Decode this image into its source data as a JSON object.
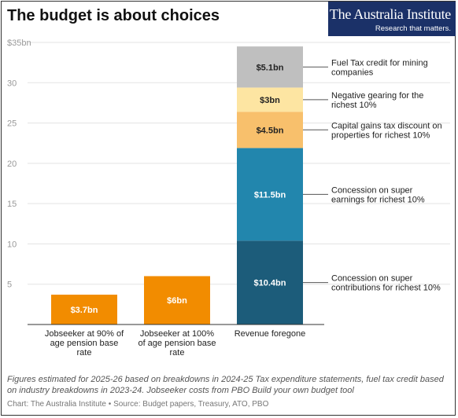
{
  "title": "The budget is about choices",
  "brand": {
    "name": "The Australia Institute",
    "tagline": "Research that matters."
  },
  "footnote": "Figures estimated for 2025-26 based on breakdowns in 2024-25 Tax expenditure statements, fuel tax credit based on industry breakdowns in 2023-24. Jobseeker costs from PBO Build your own budget tool",
  "credit": {
    "chart": "Chart: The Australia Institute",
    "source": "Source: Budget papers, Treasury, ATO, PBO"
  },
  "colors": {
    "orange": "#f28c00",
    "fuel": "#bfbfbf",
    "gearing": "#fde5a2",
    "cgt": "#f8c06c",
    "super_earnings": "#2286ad",
    "super_contrib": "#1c5c7a"
  },
  "chart_data": {
    "type": "bar",
    "stacked": true,
    "categories": [
      [
        "Jobseeker at 90% of",
        "age pension base",
        "rate"
      ],
      [
        "Jobseeker at 100%",
        "of age pension base",
        "rate"
      ],
      [
        "Revenue foregone"
      ]
    ],
    "y_ticks": [
      "5",
      "10",
      "15",
      "20",
      "25",
      "30",
      "$35bn"
    ],
    "ylim": [
      0,
      35
    ],
    "grid": true,
    "bars": [
      {
        "value": 3.7,
        "label": "$3.7bn"
      },
      {
        "value": 6,
        "label": "$6bn"
      }
    ],
    "stack": [
      {
        "value": 10.4,
        "label": "$10.4bn",
        "annotation": [
          "Concession on super",
          "contributions for richest 10%"
        ]
      },
      {
        "value": 11.5,
        "label": "$11.5bn",
        "annotation": [
          "Concession on super",
          "earnings for richest 10%"
        ]
      },
      {
        "value": 4.5,
        "label": "$4.5bn",
        "annotation": [
          "Capital gains tax discount on",
          "properties for richest 10%"
        ]
      },
      {
        "value": 3,
        "label": "$3bn",
        "annotation": [
          "Negative gearing for the",
          "richest 10%"
        ]
      },
      {
        "value": 5.1,
        "label": "$5.1bn",
        "annotation": [
          "Fuel Tax credit for mining",
          "companies"
        ]
      }
    ]
  }
}
